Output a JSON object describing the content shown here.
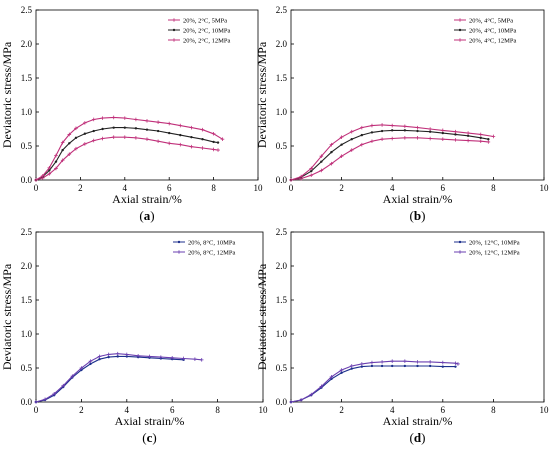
{
  "colors": {
    "black": "#222222",
    "magenta": "#c0307a",
    "navy": "#1c2f8c",
    "purple": "#6a3fb0"
  },
  "chart_data": [
    {
      "type": "line",
      "panel": "a",
      "label_text": "(a)",
      "label_letter": "a",
      "xlabel": "Axial strain/%",
      "ylabel": "Deviatoric stress/MPa",
      "xlim": [
        0,
        10
      ],
      "ylim": [
        0,
        2.5
      ],
      "xticks": [
        "0",
        "2",
        "4",
        "6",
        "8",
        "10"
      ],
      "yticks": [
        "0.0",
        "0.5",
        "1.0",
        "1.5",
        "2.0",
        "2.5"
      ],
      "legend_position": "top-right",
      "grid": false,
      "series": [
        {
          "name": "20%, 2°C, 5MPa",
          "color": "#c0307a",
          "marker": "plus",
          "x": [
            0,
            0.3,
            0.6,
            0.9,
            1.2,
            1.5,
            1.8,
            2.2,
            2.6,
            3.0,
            3.5,
            4.0,
            4.5,
            5.0,
            5.5,
            6.0,
            6.5,
            7.0,
            7.5,
            8.0,
            8.2
          ],
          "y": [
            0,
            0.03,
            0.09,
            0.17,
            0.29,
            0.38,
            0.46,
            0.53,
            0.58,
            0.61,
            0.63,
            0.63,
            0.62,
            0.6,
            0.57,
            0.54,
            0.52,
            0.49,
            0.47,
            0.45,
            0.44
          ]
        },
        {
          "name": "20%, 2°C, 10MPa",
          "color": "#222222",
          "marker": "dot",
          "x": [
            0,
            0.3,
            0.6,
            0.9,
            1.2,
            1.5,
            1.8,
            2.2,
            2.6,
            3.0,
            3.5,
            4.0,
            4.5,
            5.0,
            5.5,
            6.0,
            6.5,
            7.0,
            7.5,
            8.0,
            8.2
          ],
          "y": [
            0,
            0.05,
            0.14,
            0.27,
            0.44,
            0.54,
            0.62,
            0.68,
            0.72,
            0.75,
            0.77,
            0.77,
            0.76,
            0.74,
            0.72,
            0.69,
            0.66,
            0.63,
            0.6,
            0.56,
            0.55
          ]
        },
        {
          "name": "20%, 2°C, 12MPa",
          "color": "#c0307a",
          "marker": "plus",
          "x": [
            0,
            0.3,
            0.6,
            0.9,
            1.2,
            1.5,
            1.8,
            2.2,
            2.6,
            3.0,
            3.5,
            4.0,
            4.5,
            5.0,
            5.5,
            6.0,
            6.5,
            7.0,
            7.5,
            8.0,
            8.4
          ],
          "y": [
            0,
            0.06,
            0.18,
            0.36,
            0.55,
            0.67,
            0.76,
            0.84,
            0.89,
            0.91,
            0.92,
            0.91,
            0.89,
            0.87,
            0.85,
            0.83,
            0.8,
            0.77,
            0.74,
            0.68,
            0.6
          ]
        }
      ]
    },
    {
      "type": "line",
      "panel": "b",
      "label_text": "(b)",
      "label_letter": "b",
      "xlabel": "Axial strain/%",
      "ylabel": "Deviatoric stress/MPa",
      "xlim": [
        0,
        10
      ],
      "ylim": [
        0,
        2.5
      ],
      "xticks": [
        "0",
        "2",
        "4",
        "6",
        "8",
        "10"
      ],
      "yticks": [
        "0.0",
        "0.5",
        "1.0",
        "1.5",
        "2.0",
        "2.5"
      ],
      "legend_position": "top-right",
      "grid": false,
      "series": [
        {
          "name": "20%, 4°C, 5MPa",
          "color": "#c0307a",
          "marker": "plus",
          "x": [
            0,
            0.4,
            0.8,
            1.2,
            1.6,
            2.0,
            2.4,
            2.8,
            3.2,
            3.6,
            4.0,
            4.5,
            5.0,
            5.5,
            6.0,
            6.5,
            7.0,
            7.5,
            7.8
          ],
          "y": [
            0,
            0.02,
            0.07,
            0.14,
            0.24,
            0.35,
            0.44,
            0.52,
            0.57,
            0.6,
            0.61,
            0.62,
            0.62,
            0.61,
            0.6,
            0.59,
            0.58,
            0.57,
            0.56
          ]
        },
        {
          "name": "20%, 4°C, 10MPa",
          "color": "#222222",
          "marker": "dot",
          "x": [
            0,
            0.4,
            0.8,
            1.2,
            1.6,
            2.0,
            2.4,
            2.8,
            3.2,
            3.6,
            4.0,
            4.5,
            5.0,
            5.5,
            6.0,
            6.5,
            7.0,
            7.5,
            7.8
          ],
          "y": [
            0,
            0.04,
            0.13,
            0.27,
            0.41,
            0.52,
            0.6,
            0.66,
            0.7,
            0.72,
            0.73,
            0.73,
            0.72,
            0.71,
            0.69,
            0.67,
            0.65,
            0.62,
            0.6
          ]
        },
        {
          "name": "20%, 4°C, 12MPa",
          "color": "#c0307a",
          "marker": "plus",
          "x": [
            0,
            0.4,
            0.8,
            1.2,
            1.6,
            2.0,
            2.4,
            2.8,
            3.2,
            3.6,
            4.0,
            4.5,
            5.0,
            5.5,
            6.0,
            6.5,
            7.0,
            7.5,
            8.0
          ],
          "y": [
            0,
            0.05,
            0.17,
            0.35,
            0.52,
            0.63,
            0.71,
            0.77,
            0.8,
            0.81,
            0.8,
            0.79,
            0.77,
            0.75,
            0.73,
            0.71,
            0.69,
            0.67,
            0.64
          ]
        }
      ]
    },
    {
      "type": "line",
      "panel": "c",
      "label_text": "(c)",
      "label_letter": "c",
      "xlabel": "Axial strain/%",
      "ylabel": "Deviatoric stress/MPa",
      "xlim": [
        0,
        10
      ],
      "ylim": [
        0,
        2.5
      ],
      "xticks": [
        "0",
        "2",
        "4",
        "6",
        "8",
        "10"
      ],
      "yticks": [
        "0.0",
        "0.5",
        "1.0",
        "1.5",
        "2.0",
        "2.5"
      ],
      "legend_position": "top-right",
      "grid": false,
      "series": [
        {
          "name": "20%, 8°C, 10MPa",
          "color": "#1c2f8c",
          "marker": "dot",
          "x": [
            0,
            0.4,
            0.8,
            1.2,
            1.6,
            2.0,
            2.4,
            2.8,
            3.2,
            3.6,
            4.0,
            4.5,
            5.0,
            5.5,
            6.0,
            6.5
          ],
          "y": [
            0,
            0.03,
            0.1,
            0.22,
            0.36,
            0.47,
            0.56,
            0.63,
            0.66,
            0.67,
            0.67,
            0.66,
            0.65,
            0.64,
            0.63,
            0.62
          ]
        },
        {
          "name": "20%, 8°C, 12MPa",
          "color": "#6a3fb0",
          "marker": "plus",
          "x": [
            0,
            0.4,
            0.8,
            1.2,
            1.6,
            2.0,
            2.4,
            2.8,
            3.2,
            3.6,
            4.0,
            4.5,
            5.0,
            5.5,
            6.0,
            6.5,
            7.0,
            7.3
          ],
          "y": [
            0,
            0.04,
            0.12,
            0.24,
            0.38,
            0.5,
            0.6,
            0.67,
            0.7,
            0.71,
            0.7,
            0.68,
            0.67,
            0.66,
            0.65,
            0.64,
            0.63,
            0.62
          ]
        }
      ]
    },
    {
      "type": "line",
      "panel": "d",
      "label_text": "(d)",
      "label_letter": "d",
      "xlabel": "Axial strain/%",
      "ylabel": "Deviatoric stress/MPa",
      "xlim": [
        0,
        10
      ],
      "ylim": [
        0,
        2.5
      ],
      "xticks": [
        "0",
        "2",
        "4",
        "6",
        "8",
        "10"
      ],
      "yticks": [
        "0.0",
        "0.5",
        "1.0",
        "1.5",
        "2.0",
        "2.5"
      ],
      "legend_position": "top-right",
      "grid": false,
      "series": [
        {
          "name": "20%, 12°C, 10MPa",
          "color": "#1c2f8c",
          "marker": "dot",
          "x": [
            0,
            0.4,
            0.8,
            1.2,
            1.6,
            2.0,
            2.4,
            2.8,
            3.2,
            3.6,
            4.0,
            4.5,
            5.0,
            5.5,
            6.0,
            6.5
          ],
          "y": [
            0,
            0.03,
            0.1,
            0.21,
            0.34,
            0.43,
            0.49,
            0.52,
            0.53,
            0.53,
            0.53,
            0.53,
            0.53,
            0.53,
            0.52,
            0.52
          ]
        },
        {
          "name": "20%, 12°C, 12MPa",
          "color": "#6a3fb0",
          "marker": "plus",
          "x": [
            0,
            0.4,
            0.8,
            1.2,
            1.6,
            2.0,
            2.4,
            2.8,
            3.2,
            3.6,
            4.0,
            4.5,
            5.0,
            5.5,
            6.0,
            6.5,
            6.6
          ],
          "y": [
            0,
            0.03,
            0.11,
            0.23,
            0.37,
            0.47,
            0.53,
            0.56,
            0.58,
            0.59,
            0.6,
            0.6,
            0.59,
            0.59,
            0.58,
            0.57,
            0.56
          ]
        }
      ]
    }
  ]
}
